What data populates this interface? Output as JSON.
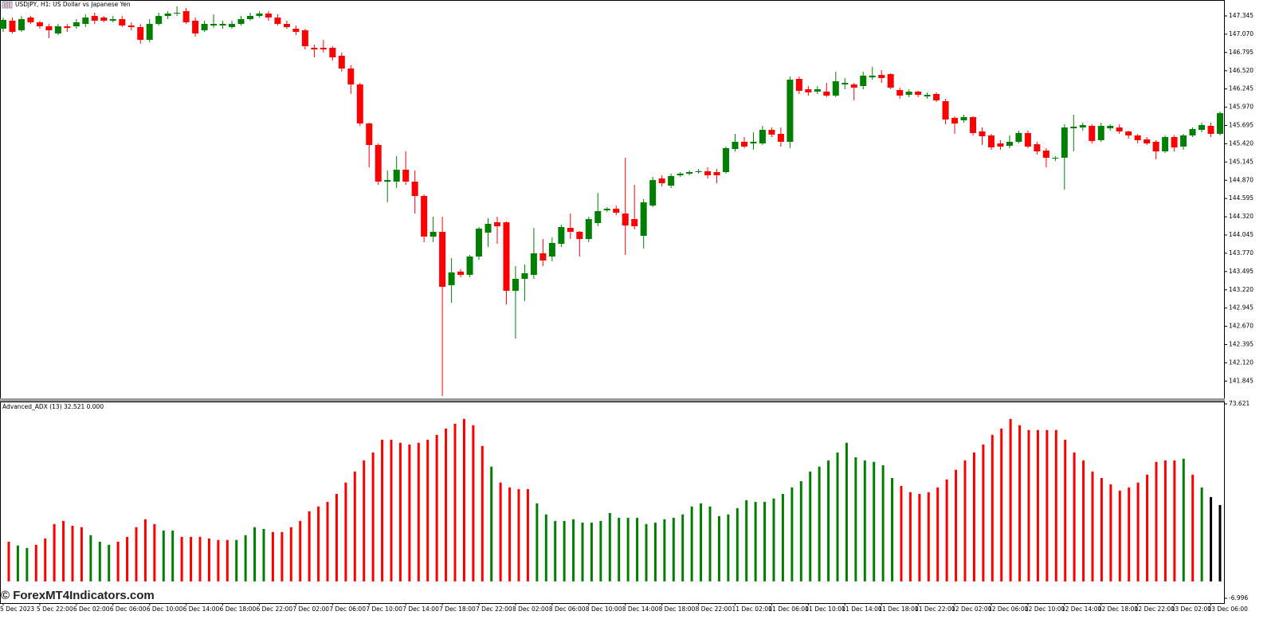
{
  "chart_data": [
    {
      "type": "candlestick",
      "title": "USDJPY, H1:  US Dollar vs Japanese Yen",
      "up_color": "#008000",
      "down_color": "#ff0000",
      "categories": [
        "5 Dec 2023",
        null,
        null,
        null,
        "5 Dec 22:00",
        null,
        null,
        null,
        "6 Dec 02:00",
        null,
        null,
        null,
        "6 Dec 06:00",
        null,
        null,
        null,
        "6 Dec 10:00",
        null,
        null,
        null,
        "6 Dec 14:00",
        null,
        null,
        null,
        "6 Dec 18:00",
        null,
        null,
        null,
        "6 Dec 22:00",
        null,
        null,
        null,
        "7 Dec 02:00",
        null,
        null,
        null,
        "7 Dec 06:00",
        null,
        null,
        null,
        "7 Dec 10:00",
        null,
        null,
        null,
        "7 Dec 14:00",
        null,
        null,
        null,
        "7 Dec 18:00",
        null,
        null,
        null,
        "7 Dec 22:00",
        null,
        null,
        null,
        "8 Dec 02:00",
        null,
        null,
        null,
        "8 Dec 06:00",
        null,
        null,
        null,
        "8 Dec 10:00",
        null,
        null,
        null,
        "8 Dec 14:00",
        null,
        null,
        null,
        "8 Dec 18:00",
        null,
        null,
        null,
        "8 Dec 22:00",
        null,
        null,
        null,
        "11 Dec 02:00",
        null,
        null,
        null,
        "11 Dec 06:00",
        null,
        null,
        null,
        "11 Dec 10:00",
        null,
        null,
        null,
        "11 Dec 14:00",
        null,
        null,
        null,
        "11 Dec 18:00",
        null,
        null,
        null,
        "11 Dec 22:00",
        null,
        null,
        null,
        "12 Dec 02:00",
        null,
        null,
        null,
        "12 Dec 06:00",
        null,
        null,
        null,
        "12 Dec 10:00",
        null,
        null,
        null,
        "12 Dec 14:00",
        null,
        null,
        null,
        "12 Dec 18:00",
        null,
        null,
        null,
        "12 Dec 22:00",
        null,
        null,
        null,
        "13 Dec 02:00",
        null,
        null,
        null,
        "13 Dec 06:00",
        null
      ],
      "open": [
        147.153,
        147.273,
        147.129,
        147.321,
        147.249,
        147.189,
        147.081,
        147.189,
        147.189,
        147.225,
        147.345,
        147.321,
        147.273,
        147.297,
        147.201,
        147.177,
        146.985,
        147.225,
        147.345,
        147.381,
        147.417,
        147.273,
        147.129,
        147.201,
        147.201,
        147.177,
        147.225,
        147.297,
        147.345,
        147.381,
        147.321,
        147.225,
        147.153,
        147.129,
        146.865,
        146.865,
        146.865,
        146.745,
        146.553,
        146.313,
        145.725,
        145.401,
        144.849,
        144.849,
        145.029,
        144.849,
        144.633,
        144.021,
        144.093,
        143.289,
        143.493,
        143.445,
        143.721,
        144.081,
        144.237,
        144.237,
        143.205,
        143.385,
        143.445,
        143.769,
        143.721,
        143.913,
        144.153,
        144.093,
        143.985,
        144.225,
        144.417,
        144.441,
        144.369,
        144.285,
        144.033,
        144.489,
        144.897,
        144.789,
        144.945,
        144.969,
        144.993,
        145.005,
        144.993,
        144.993,
        145.341,
        145.449,
        145.425,
        145.425,
        145.629,
        145.569,
        145.449,
        146.397,
        146.241,
        146.205,
        146.205,
        146.145,
        146.313,
        146.313,
        146.289,
        146.421,
        146.457,
        146.469,
        146.229,
        146.157,
        146.205,
        146.133,
        146.169,
        146.061,
        145.809,
        145.773,
        145.821,
        145.605,
        145.545,
        145.425,
        145.389,
        145.449,
        145.581,
        145.413,
        145.317,
        145.197,
        145.209,
        145.653,
        145.665,
        145.689,
        145.473,
        145.653,
        145.665,
        145.605,
        145.545,
        145.485,
        145.449,
        145.305,
        145.521,
        145.377,
        145.545,
        145.629,
        145.689,
        145.569
      ],
      "high": [
        147.321,
        147.321,
        147.345,
        147.345,
        147.273,
        147.225,
        147.225,
        147.225,
        147.297,
        147.369,
        147.393,
        147.345,
        147.345,
        147.345,
        147.249,
        147.225,
        147.297,
        147.393,
        147.417,
        147.489,
        147.465,
        147.321,
        147.273,
        147.369,
        147.273,
        147.273,
        147.345,
        147.393,
        147.417,
        147.417,
        147.369,
        147.273,
        147.201,
        147.153,
        146.913,
        146.985,
        146.889,
        146.793,
        146.601,
        146.337,
        145.737,
        145.425,
        145.017,
        145.233,
        145.305,
        145.017,
        144.657,
        144.321,
        144.321,
        143.697,
        143.529,
        143.745,
        144.165,
        144.297,
        144.321,
        144.249,
        143.577,
        143.601,
        144.153,
        143.985,
        144.009,
        144.201,
        144.369,
        144.105,
        144.321,
        144.681,
        144.465,
        144.489,
        145.209,
        144.801,
        144.585,
        144.921,
        144.945,
        144.969,
        144.993,
        145.017,
        145.041,
        145.065,
        145.041,
        145.377,
        145.569,
        145.521,
        145.593,
        145.689,
        145.665,
        145.665,
        146.433,
        146.433,
        146.289,
        146.289,
        146.337,
        146.505,
        146.409,
        146.337,
        146.505,
        146.577,
        146.529,
        146.481,
        146.265,
        146.241,
        146.217,
        146.193,
        146.193,
        146.097,
        145.833,
        145.857,
        145.833,
        145.665,
        145.569,
        145.473,
        145.545,
        145.617,
        145.617,
        145.449,
        145.353,
        145.233,
        145.713,
        145.857,
        145.737,
        145.713,
        145.737,
        145.713,
        145.713,
        145.617,
        145.569,
        145.521,
        145.473,
        145.545,
        145.545,
        145.569,
        145.665,
        145.737,
        145.737,
        145.905
      ],
      "low": [
        147.105,
        147.081,
        147.105,
        147.225,
        147.153,
        147.009,
        147.057,
        147.105,
        147.153,
        147.177,
        147.225,
        147.249,
        147.249,
        147.177,
        147.129,
        146.925,
        146.949,
        147.201,
        147.297,
        147.345,
        147.225,
        147.033,
        147.105,
        147.165,
        147.153,
        147.153,
        147.201,
        147.273,
        147.321,
        147.273,
        147.201,
        147.153,
        147.057,
        146.841,
        146.721,
        146.793,
        146.673,
        146.505,
        146.169,
        145.689,
        145.065,
        144.801,
        144.537,
        144.753,
        144.801,
        144.369,
        143.937,
        143.937,
        141.621,
        143.025,
        143.409,
        143.409,
        143.673,
        143.865,
        143.913,
        143.001,
        142.485,
        143.049,
        143.385,
        143.577,
        143.649,
        143.865,
        143.985,
        143.721,
        143.937,
        144.177,
        144.393,
        144.345,
        143.745,
        144.129,
        143.841,
        144.465,
        144.777,
        144.753,
        144.921,
        144.945,
        144.969,
        144.897,
        144.825,
        144.969,
        145.305,
        145.353,
        145.329,
        145.401,
        145.521,
        145.377,
        145.353,
        146.169,
        146.145,
        146.169,
        146.121,
        146.121,
        146.241,
        146.073,
        146.241,
        146.385,
        146.337,
        146.241,
        146.097,
        146.121,
        146.121,
        146.097,
        146.049,
        145.713,
        145.569,
        145.737,
        145.545,
        145.401,
        145.329,
        145.329,
        145.353,
        145.425,
        145.353,
        145.257,
        145.065,
        145.161,
        144.729,
        145.305,
        145.617,
        145.425,
        145.449,
        145.617,
        145.569,
        145.497,
        145.425,
        145.401,
        145.185,
        145.281,
        145.305,
        145.329,
        145.521,
        145.593,
        145.521,
        145.545
      ],
      "close": [
        147.285,
        147.105,
        147.297,
        147.249,
        147.189,
        147.129,
        147.189,
        147.165,
        147.249,
        147.321,
        147.273,
        147.273,
        147.297,
        147.201,
        147.177,
        146.985,
        147.225,
        147.345,
        147.381,
        147.393,
        147.249,
        147.081,
        147.225,
        147.225,
        147.225,
        147.225,
        147.297,
        147.345,
        147.381,
        147.321,
        147.225,
        147.177,
        147.105,
        146.889,
        146.841,
        146.841,
        146.721,
        146.553,
        146.313,
        145.725,
        145.401,
        144.849,
        144.873,
        145.029,
        144.849,
        144.633,
        144.021,
        144.093,
        143.265,
        143.481,
        143.445,
        143.721,
        144.141,
        144.213,
        144.177,
        143.205,
        143.385,
        143.469,
        143.769,
        143.661,
        143.925,
        144.165,
        144.093,
        143.985,
        144.285,
        144.405,
        144.441,
        144.381,
        144.189,
        144.177,
        144.537,
        144.873,
        144.825,
        144.933,
        144.969,
        144.993,
        145.005,
        144.945,
        144.945,
        145.353,
        145.449,
        145.377,
        145.449,
        145.629,
        145.557,
        145.449,
        146.385,
        146.217,
        146.193,
        146.241,
        146.145,
        146.361,
        146.337,
        146.265,
        146.445,
        146.445,
        146.409,
        146.265,
        146.145,
        146.205,
        146.157,
        146.157,
        146.073,
        145.785,
        145.725,
        145.821,
        145.581,
        145.533,
        145.365,
        145.377,
        145.449,
        145.581,
        145.377,
        145.305,
        145.209,
        145.209,
        145.665,
        145.677,
        145.701,
        145.461,
        145.689,
        145.689,
        145.605,
        145.545,
        145.473,
        145.425,
        145.305,
        145.521,
        145.365,
        145.545,
        145.641,
        145.701,
        145.569,
        145.881
      ],
      "ylim": [
        141.585,
        147.585
      ],
      "yticks": [
        147.345,
        {
          "value": 147.07,
          "label": "147.070"
        },
        146.795,
        {
          "value": 146.52,
          "label": "146.520"
        },
        146.245,
        {
          "value": 145.97,
          "label": "145.970"
        },
        145.695,
        {
          "value": 145.42,
          "label": "145.420"
        },
        145.145,
        {
          "value": 144.87,
          "label": "144.870"
        },
        144.595,
        {
          "value": 144.32,
          "label": "144.320"
        },
        144.045,
        {
          "value": 143.77,
          "label": "143.770"
        },
        143.495,
        {
          "value": 143.22,
          "label": "143.220"
        },
        142.945,
        {
          "value": 142.67,
          "label": "142.670"
        },
        142.395,
        {
          "value": 142.12,
          "label": "142.120"
        },
        141.845
      ]
    },
    {
      "type": "bar",
      "title": "Advanced_ADX (13) 32.521 0.000",
      "values": [
        16.5,
        14.9,
        13.9,
        15.2,
        17.8,
        23.8,
        25.1,
        23.1,
        22.5,
        19.2,
        16.5,
        15.2,
        16.5,
        18.5,
        22.5,
        25.8,
        23.8,
        21.1,
        21.1,
        18.5,
        18.5,
        18.5,
        17.8,
        17.2,
        17.2,
        17.2,
        19.2,
        22.5,
        21.8,
        20.5,
        20.5,
        22.5,
        25.1,
        29.1,
        31.1,
        33.0,
        36.3,
        41.0,
        45.6,
        50.2,
        53.5,
        58.8,
        58.8,
        57.5,
        56.8,
        57.5,
        58.8,
        60.8,
        63.4,
        65.4,
        67.4,
        64.8,
        56.2,
        47.6,
        41.0,
        39.0,
        38.3,
        38.3,
        32.4,
        27.8,
        25.1,
        25.1,
        25.8,
        24.4,
        24.4,
        25.1,
        28.4,
        26.4,
        26.4,
        26.4,
        23.8,
        24.4,
        25.8,
        26.4,
        27.8,
        31.1,
        32.4,
        31.1,
        27.1,
        27.8,
        30.4,
        33.7,
        33.0,
        33.0,
        34.4,
        36.3,
        39.0,
        41.6,
        45.6,
        47.6,
        50.2,
        53.5,
        57.5,
        51.5,
        50.2,
        49.6,
        48.2,
        42.9,
        39.6,
        37.0,
        36.3,
        37.0,
        39.0,
        42.3,
        46.3,
        50.2,
        53.5,
        56.8,
        60.8,
        63.4,
        67.4,
        64.8,
        62.8,
        62.8,
        62.8,
        62.8,
        58.8,
        53.5,
        50.2,
        45.6,
        42.9,
        40.3,
        37.7,
        39.0,
        41.0,
        44.3,
        49.6,
        50.2,
        50.2,
        50.9,
        44.3,
        39.0,
        35.0,
        31.7
      ],
      "bar_colors": [
        "#ff0000",
        "#008000",
        "#008000",
        "#ff0000",
        "#ff0000",
        "#ff0000",
        "#ff0000",
        "#ff0000",
        "#ff0000",
        "#008000",
        "#008000",
        "#008000",
        "#ff0000",
        "#ff0000",
        "#ff0000",
        "#ff0000",
        "#ff0000",
        "#008000",
        "#008000",
        "#ff0000",
        "#ff0000",
        "#ff0000",
        "#ff0000",
        "#ff0000",
        "#ff0000",
        "#008000",
        "#008000",
        "#008000",
        "#008000",
        "#ff0000",
        "#ff0000",
        "#ff0000",
        "#ff0000",
        "#ff0000",
        "#ff0000",
        "#ff0000",
        "#ff0000",
        "#ff0000",
        "#ff0000",
        "#ff0000",
        "#ff0000",
        "#ff0000",
        "#ff0000",
        "#ff0000",
        "#ff0000",
        "#ff0000",
        "#ff0000",
        "#ff0000",
        "#ff0000",
        "#ff0000",
        "#ff0000",
        "#ff0000",
        "#ff0000",
        "#008000",
        "#ff0000",
        "#ff0000",
        "#ff0000",
        "#ff0000",
        "#008000",
        "#008000",
        "#008000",
        "#008000",
        "#008000",
        "#008000",
        "#008000",
        "#008000",
        "#008000",
        "#008000",
        "#008000",
        "#008000",
        "#008000",
        "#008000",
        "#008000",
        "#008000",
        "#008000",
        "#008000",
        "#008000",
        "#008000",
        "#008000",
        "#008000",
        "#008000",
        "#008000",
        "#008000",
        "#008000",
        "#008000",
        "#008000",
        "#008000",
        "#008000",
        "#008000",
        "#008000",
        "#008000",
        "#008000",
        "#008000",
        "#008000",
        "#008000",
        "#008000",
        "#008000",
        "#008000",
        "#ff0000",
        "#ff0000",
        "#ff0000",
        "#ff0000",
        "#ff0000",
        "#ff0000",
        "#ff0000",
        "#ff0000",
        "#ff0000",
        "#ff0000",
        "#ff0000",
        "#ff0000",
        "#ff0000",
        "#ff0000",
        "#ff0000",
        "#ff0000",
        "#ff0000",
        "#ff0000",
        "#ff0000",
        "#ff0000",
        "#ff0000",
        "#ff0000",
        "#ff0000",
        "#ff0000",
        "#ff0000",
        "#ff0000",
        "#ff0000",
        "#ff0000",
        "#ff0000",
        "#ff0000",
        "#ff0000",
        "#008000",
        "#ff0000",
        "#008000"
      ],
      "ylim": [
        -6.996,
        73.621
      ],
      "yticks": [
        73.621,
        -6.996
      ]
    }
  ],
  "watermark": "© ForexMT4Indicators.com"
}
